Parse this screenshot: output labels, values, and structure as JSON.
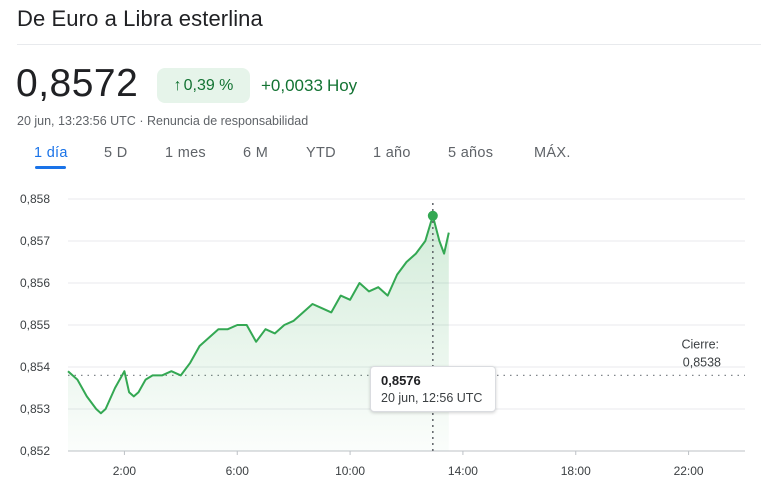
{
  "title": "De Euro a Libra esterlina",
  "price": "0,8572",
  "change_percent": "0,39 %",
  "change_arrow_icon": "arrow-up-icon",
  "change_abs": "+0,0033",
  "change_period": "Hoy",
  "timestamp": "20 jun, 13:23:56 UTC",
  "separator": "·",
  "disclaimer": "Renuncia de responsabilidad",
  "tabs": [
    "1 día",
    "5 D",
    "1 mes",
    "6 M",
    "YTD",
    "1 año",
    "5 años",
    "MÁX."
  ],
  "active_tab": "1 día",
  "colors": {
    "positive": "#137333",
    "line": "#34a853",
    "accent": "#1a73e8",
    "chip_bg": "#e6f4ea"
  },
  "tooltip": {
    "value": "0,8576",
    "time": "20 jun, 12:56 UTC"
  },
  "close": {
    "label": "Cierre:",
    "value": "0,8538"
  },
  "chart_data": {
    "type": "line",
    "title": "",
    "xlabel": "",
    "ylabel": "",
    "ylim": [
      0.852,
      0.858
    ],
    "xlim_hours": [
      0,
      24
    ],
    "grid": true,
    "y_ticks": [
      "0,858",
      "0,857",
      "0,856",
      "0,855",
      "0,854",
      "0,853",
      "0,852"
    ],
    "x_ticks": [
      "2:00",
      "6:00",
      "10:00",
      "14:00",
      "18:00",
      "22:00"
    ],
    "previous_close": 0.8538,
    "highlight": {
      "time": "12:56",
      "value": 0.8576
    },
    "series": [
      {
        "x": [
          "0:00",
          "0:20",
          "0:40",
          "1:00",
          "1:10",
          "1:20",
          "1:40",
          "2:00",
          "2:10",
          "2:20",
          "2:30",
          "2:45",
          "3:00",
          "3:20",
          "3:40",
          "4:00",
          "4:20",
          "4:40",
          "5:00",
          "5:20",
          "5:40",
          "6:00",
          "6:20",
          "6:40",
          "7:00",
          "7:20",
          "7:40",
          "8:00",
          "8:20",
          "8:40",
          "9:00",
          "9:20",
          "9:40",
          "10:00",
          "10:20",
          "10:40",
          "11:00",
          "11:20",
          "11:40",
          "12:00",
          "12:20",
          "12:40",
          "12:56",
          "13:10",
          "13:20",
          "13:30"
        ],
        "values": [
          0.8539,
          0.8537,
          0.8533,
          0.853,
          0.8529,
          0.853,
          0.8535,
          0.8539,
          0.8534,
          0.8533,
          0.8534,
          0.8537,
          0.8538,
          0.8538,
          0.8539,
          0.8538,
          0.8541,
          0.8545,
          0.8547,
          0.8549,
          0.8549,
          0.855,
          0.855,
          0.8546,
          0.8549,
          0.8548,
          0.855,
          0.8551,
          0.8553,
          0.8555,
          0.8554,
          0.8553,
          0.8557,
          0.8556,
          0.856,
          0.8558,
          0.8559,
          0.8557,
          0.8562,
          0.8565,
          0.8567,
          0.857,
          0.8576,
          0.857,
          0.8567,
          0.8572
        ]
      }
    ]
  }
}
